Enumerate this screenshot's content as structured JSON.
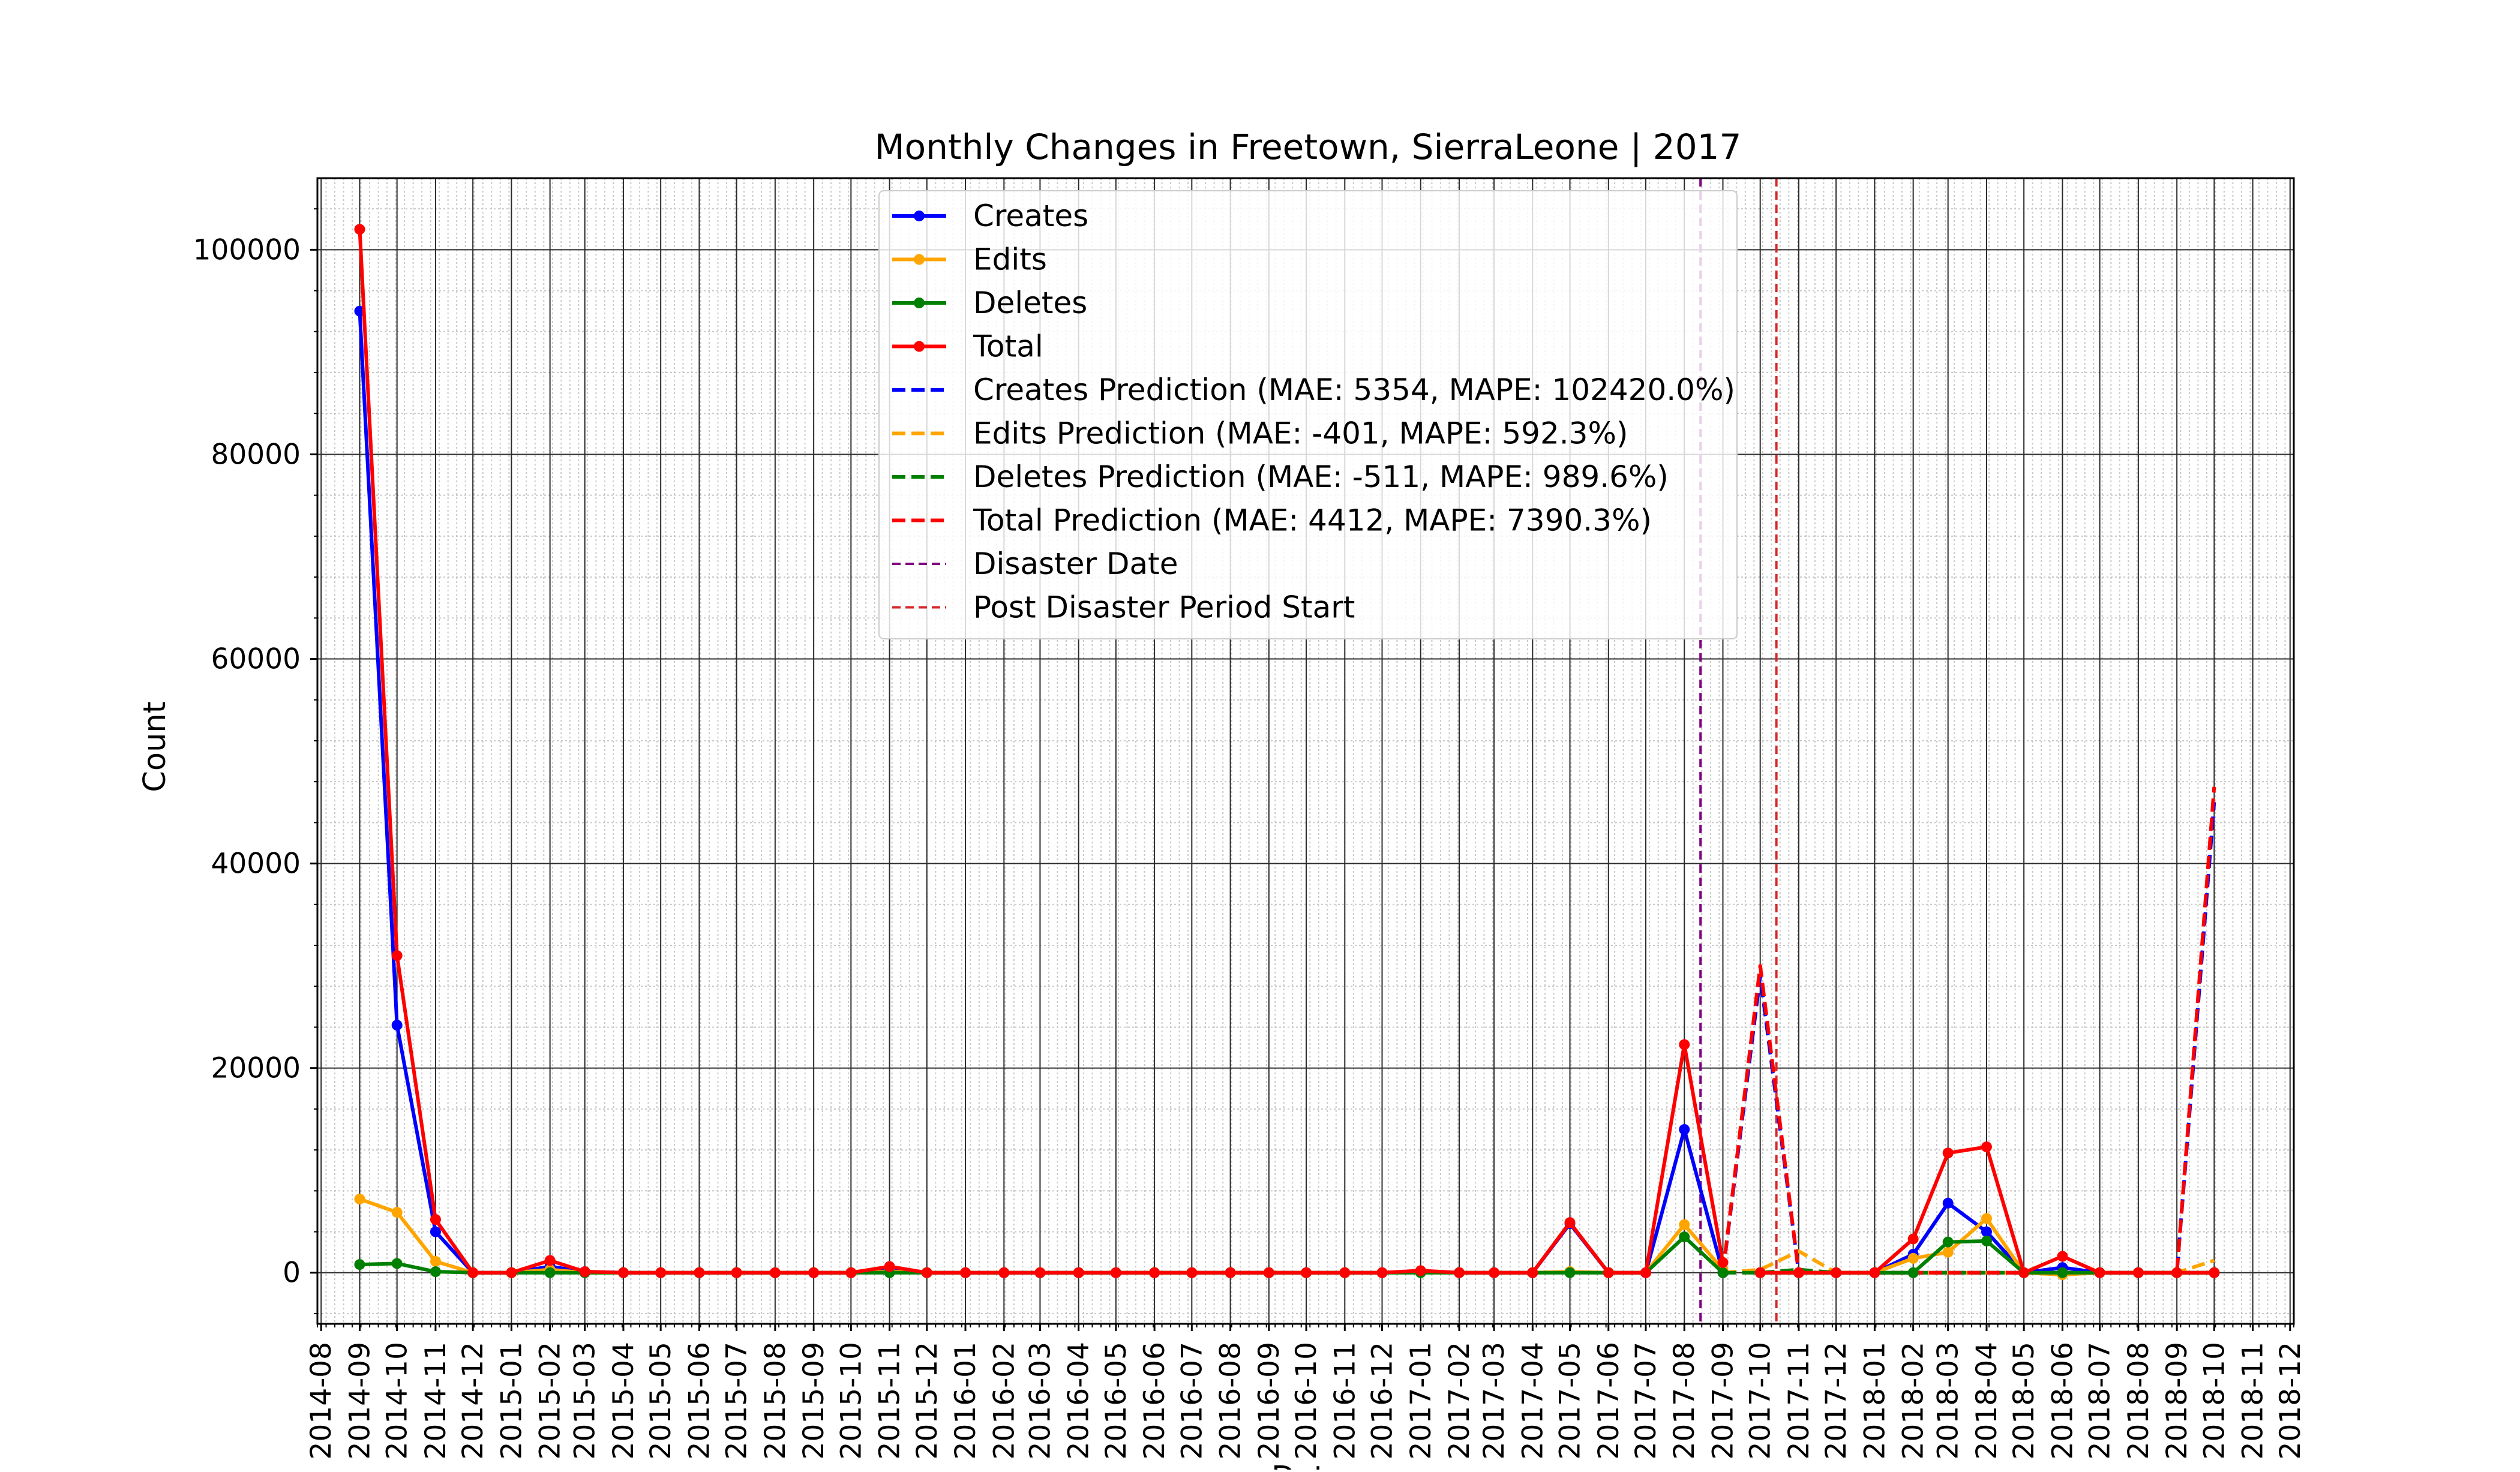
{
  "chart_data": {
    "type": "line",
    "title": "Monthly Changes in Freetown, SierraLeone | 2017",
    "xlabel": "Date",
    "ylabel": "Count",
    "ylim": [
      -5000,
      107000
    ],
    "yticks": [
      0,
      20000,
      40000,
      60000,
      80000,
      100000
    ],
    "xlim": [
      "2014-08",
      "2018-12"
    ],
    "xticks": [
      "2014-08",
      "2014-09",
      "2014-10",
      "2014-11",
      "2014-12",
      "2015-01",
      "2015-02",
      "2015-03",
      "2015-04",
      "2015-05",
      "2015-06",
      "2015-07",
      "2015-08",
      "2015-09",
      "2015-10",
      "2015-11",
      "2015-12",
      "2016-01",
      "2016-02",
      "2016-03",
      "2016-04",
      "2016-05",
      "2016-06",
      "2016-07",
      "2016-08",
      "2016-09",
      "2016-10",
      "2016-11",
      "2016-12",
      "2017-01",
      "2017-02",
      "2017-03",
      "2017-04",
      "2017-05",
      "2017-06",
      "2017-07",
      "2017-08",
      "2017-09",
      "2017-10",
      "2017-11",
      "2017-12",
      "2018-01",
      "2018-02",
      "2018-03",
      "2018-04",
      "2018-05",
      "2018-06",
      "2018-07",
      "2018-08",
      "2018-09",
      "2018-10",
      "2018-11",
      "2018-12"
    ],
    "grid": true,
    "legend_position": "upper center",
    "series": [
      {
        "name": "Creates",
        "color": "#0000ff",
        "style": "solid",
        "marker": "dot",
        "x": [
          "2014-09",
          "2014-10",
          "2014-11",
          "2014-12",
          "2015-01",
          "2015-02",
          "2015-03",
          "2015-04",
          "2015-05",
          "2015-06",
          "2015-07",
          "2015-08",
          "2015-09",
          "2015-10",
          "2015-11",
          "2015-12",
          "2016-01",
          "2016-02",
          "2016-03",
          "2016-04",
          "2016-05",
          "2016-06",
          "2016-07",
          "2016-08",
          "2016-09",
          "2016-10",
          "2016-11",
          "2016-12",
          "2017-01",
          "2017-02",
          "2017-03",
          "2017-04",
          "2017-05",
          "2017-06",
          "2017-07",
          "2017-08",
          "2017-09"
        ],
        "y": [
          94000,
          24200,
          4000,
          0,
          0,
          600,
          100,
          0,
          0,
          0,
          0,
          0,
          0,
          0,
          300,
          0,
          0,
          0,
          0,
          0,
          0,
          0,
          0,
          0,
          0,
          0,
          0,
          0,
          100,
          0,
          0,
          0,
          4800,
          0,
          0,
          14000,
          0
        ]
      },
      {
        "name": "Edits",
        "color": "#ffa500",
        "style": "solid",
        "marker": "dot",
        "x": [
          "2014-09",
          "2014-10",
          "2014-11",
          "2014-12",
          "2015-01",
          "2015-02",
          "2015-03",
          "2015-04",
          "2015-05",
          "2015-06",
          "2015-07",
          "2015-08",
          "2015-09",
          "2015-10",
          "2015-11",
          "2015-12",
          "2016-01",
          "2016-02",
          "2016-03",
          "2016-04",
          "2016-05",
          "2016-06",
          "2016-07",
          "2016-08",
          "2016-09",
          "2016-10",
          "2016-11",
          "2016-12",
          "2017-01",
          "2017-02",
          "2017-03",
          "2017-04",
          "2017-05",
          "2017-06",
          "2017-07",
          "2017-08",
          "2017-09"
        ],
        "y": [
          7200,
          5900,
          1100,
          0,
          0,
          300,
          0,
          0,
          0,
          0,
          0,
          0,
          0,
          0,
          100,
          0,
          0,
          0,
          0,
          0,
          0,
          0,
          0,
          0,
          0,
          0,
          0,
          0,
          100,
          0,
          0,
          0,
          100,
          0,
          0,
          4700,
          300
        ]
      },
      {
        "name": "Deletes",
        "color": "#008000",
        "style": "solid",
        "marker": "dot",
        "x": [
          "2014-09",
          "2014-10",
          "2014-11",
          "2014-12",
          "2015-01",
          "2015-02",
          "2015-03",
          "2015-04",
          "2015-05",
          "2015-06",
          "2015-07",
          "2015-08",
          "2015-09",
          "2015-10",
          "2015-11",
          "2015-12",
          "2016-01",
          "2016-02",
          "2016-03",
          "2016-04",
          "2016-05",
          "2016-06",
          "2016-07",
          "2016-08",
          "2016-09",
          "2016-10",
          "2016-11",
          "2016-12",
          "2017-01",
          "2017-02",
          "2017-03",
          "2017-04",
          "2017-05",
          "2017-06",
          "2017-07",
          "2017-08",
          "2017-09"
        ],
        "y": [
          800,
          900,
          100,
          0,
          0,
          0,
          0,
          0,
          0,
          0,
          0,
          0,
          0,
          0,
          0,
          0,
          0,
          0,
          0,
          0,
          0,
          0,
          0,
          0,
          0,
          0,
          0,
          0,
          0,
          0,
          0,
          0,
          0,
          0,
          0,
          3500,
          0
        ]
      },
      {
        "name": "Total",
        "color": "#ff0000",
        "style": "solid",
        "marker": "dot",
        "x": [
          "2014-09",
          "2014-10",
          "2014-11",
          "2014-12",
          "2015-01",
          "2015-02",
          "2015-03",
          "2015-04",
          "2015-05",
          "2015-06",
          "2015-07",
          "2015-08",
          "2015-09",
          "2015-10",
          "2015-11",
          "2015-12",
          "2016-01",
          "2016-02",
          "2016-03",
          "2016-04",
          "2016-05",
          "2016-06",
          "2016-07",
          "2016-08",
          "2016-09",
          "2016-10",
          "2016-11",
          "2016-12",
          "2017-01",
          "2017-02",
          "2017-03",
          "2017-04",
          "2017-05",
          "2017-06",
          "2017-07",
          "2017-08",
          "2017-09"
        ],
        "y": [
          102000,
          31000,
          5200,
          0,
          0,
          1200,
          100,
          0,
          0,
          0,
          0,
          0,
          0,
          0,
          600,
          0,
          0,
          0,
          0,
          0,
          0,
          0,
          0,
          0,
          0,
          0,
          0,
          0,
          200,
          0,
          0,
          0,
          4900,
          0,
          0,
          22300,
          1000
        ]
      },
      {
        "name": "Creates Prediction (MAE: 5354, MAPE: 102420.0%)",
        "color": "#0000ff",
        "style": "dashed",
        "marker": "none",
        "x": [
          "2017-09",
          "2017-10",
          "2017-11",
          "2017-12",
          "2018-01",
          "2018-02",
          "2018-03",
          "2018-04",
          "2018-05",
          "2018-06",
          "2018-07",
          "2018-08",
          "2018-09",
          "2018-10"
        ],
        "y": [
          0,
          29000,
          0,
          0,
          0,
          0,
          0,
          0,
          0,
          0,
          0,
          0,
          0,
          46000
        ]
      },
      {
        "name": "Edits Prediction (MAE: -401, MAPE: 592.3%)",
        "color": "#ffa500",
        "style": "dashed",
        "marker": "none",
        "x": [
          "2017-09",
          "2017-10",
          "2017-11",
          "2017-12",
          "2018-01",
          "2018-02",
          "2018-03",
          "2018-04",
          "2018-05",
          "2018-06",
          "2018-07",
          "2018-08",
          "2018-09",
          "2018-10"
        ],
        "y": [
          0,
          300,
          2100,
          0,
          0,
          0,
          0,
          0,
          0,
          0,
          0,
          0,
          0,
          1200
        ]
      },
      {
        "name": "Deletes Prediction (MAE: -511, MAPE: 989.6%)",
        "color": "#008000",
        "style": "dashed",
        "marker": "none",
        "x": [
          "2017-09",
          "2017-10",
          "2017-11",
          "2017-12",
          "2018-01",
          "2018-02",
          "2018-03",
          "2018-04",
          "2018-05",
          "2018-06",
          "2018-07",
          "2018-08",
          "2018-09",
          "2018-10"
        ],
        "y": [
          0,
          0,
          300,
          0,
          0,
          0,
          0,
          0,
          0,
          0,
          0,
          0,
          0,
          0
        ]
      },
      {
        "name": "Total Prediction (MAE: 4412, MAPE: 7390.3%)",
        "color": "#ff0000",
        "style": "dashed",
        "marker": "none",
        "x": [
          "2017-09",
          "2017-10",
          "2017-11",
          "2017-12",
          "2018-01",
          "2018-02",
          "2018-03",
          "2018-04",
          "2018-05",
          "2018-06",
          "2018-07",
          "2018-08",
          "2018-09",
          "2018-10"
        ],
        "y": [
          0,
          30000,
          0,
          0,
          0,
          0,
          0,
          0,
          0,
          0,
          0,
          0,
          0,
          47500
        ]
      },
      {
        "name": "Creates",
        "color": "#0000ff",
        "style": "solid",
        "marker": "dot",
        "in_legend": false,
        "x": [
          "2017-10",
          "2017-11",
          "2017-12",
          "2018-01",
          "2018-02",
          "2018-03",
          "2018-04",
          "2018-05",
          "2018-06",
          "2018-07",
          "2018-08",
          "2018-09",
          "2018-10"
        ],
        "y": [
          0,
          0,
          0,
          0,
          1800,
          6800,
          4000,
          0,
          500,
          0,
          0,
          0,
          0
        ]
      },
      {
        "name": "Edits",
        "color": "#ffa500",
        "style": "solid",
        "marker": "dot",
        "in_legend": false,
        "x": [
          "2017-10",
          "2017-11",
          "2017-12",
          "2018-01",
          "2018-02",
          "2018-03",
          "2018-04",
          "2018-05",
          "2018-06",
          "2018-07",
          "2018-08",
          "2018-09",
          "2018-10"
        ],
        "y": [
          0,
          0,
          0,
          0,
          1400,
          2000,
          5300,
          0,
          -200,
          0,
          0,
          0,
          0
        ]
      },
      {
        "name": "Deletes",
        "color": "#008000",
        "style": "solid",
        "marker": "dot",
        "in_legend": false,
        "x": [
          "2017-10",
          "2017-11",
          "2017-12",
          "2018-01",
          "2018-02",
          "2018-03",
          "2018-04",
          "2018-05",
          "2018-06",
          "2018-07",
          "2018-08",
          "2018-09",
          "2018-10"
        ],
        "y": [
          0,
          0,
          0,
          0,
          0,
          3000,
          3100,
          0,
          0,
          0,
          0,
          0,
          0
        ]
      },
      {
        "name": "Total",
        "color": "#ff0000",
        "style": "solid",
        "marker": "dot",
        "in_legend": false,
        "x": [
          "2017-10",
          "2017-11",
          "2017-12",
          "2018-01",
          "2018-02",
          "2018-03",
          "2018-04",
          "2018-05",
          "2018-06",
          "2018-07",
          "2018-08",
          "2018-09",
          "2018-10"
        ],
        "y": [
          0,
          0,
          0,
          0,
          3300,
          11700,
          12300,
          0,
          1600,
          0,
          0,
          0,
          0
        ]
      }
    ],
    "vlines": [
      {
        "name": "Disaster Date",
        "color": "#800080",
        "style": "dashed",
        "x": "2017-08-14"
      },
      {
        "name": "Post Disaster Period Start",
        "color": "#d62728",
        "style": "dashed",
        "x": "2017-10-14"
      }
    ]
  }
}
